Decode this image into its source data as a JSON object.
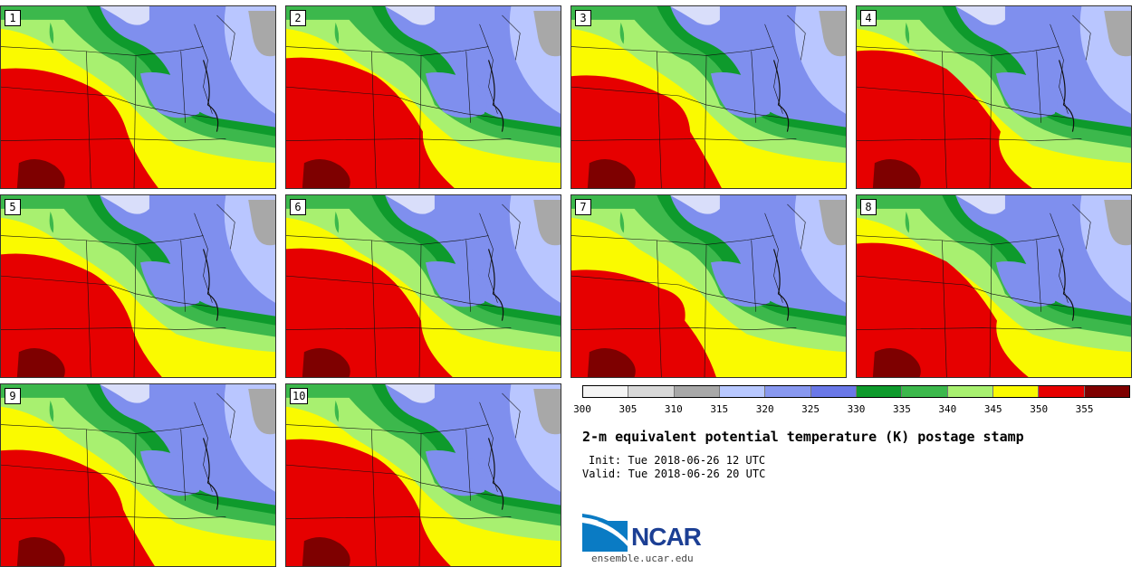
{
  "panels": [
    {
      "label": "1"
    },
    {
      "label": "2"
    },
    {
      "label": "3"
    },
    {
      "label": "4"
    },
    {
      "label": "5"
    },
    {
      "label": "6"
    },
    {
      "label": "7"
    },
    {
      "label": "8"
    },
    {
      "label": "9"
    },
    {
      "label": "10"
    }
  ],
  "colorbar": {
    "colors": [
      "#f4f4f4",
      "#d8d8d8",
      "#a8a8a8",
      "#b8c8ff",
      "#8898f0",
      "#6a78e8",
      "#0e9a2c",
      "#3cb84c",
      "#a8f070",
      "#fafa00",
      "#e60000",
      "#7e0000"
    ],
    "ticks": [
      "300",
      "305",
      "310",
      "315",
      "320",
      "325",
      "330",
      "335",
      "340",
      "345",
      "350",
      "355"
    ]
  },
  "title": "2-m equivalent potential temperature (K) postage stamp",
  "init": "Init: Tue 2018-06-26 12 UTC",
  "valid": "Valid: Tue 2018-06-26 20 UTC",
  "logo": {
    "text": "NCAR",
    "color": "#1c3f94",
    "accent": "#0a7bc4"
  },
  "website": "ensemble.ucar.edu"
}
